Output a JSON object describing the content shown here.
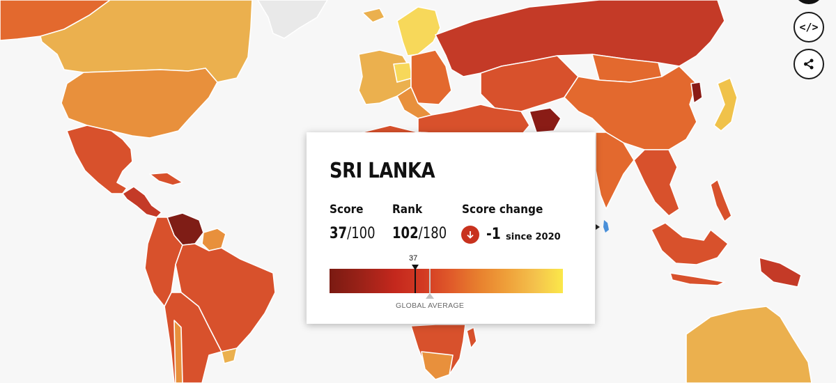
{
  "country": {
    "name": "SRI LANKA",
    "score_label": "Score",
    "score": "37",
    "score_max": "/100",
    "rank_label": "Rank",
    "rank": "102",
    "rank_max": "/180",
    "change_label": "Score change",
    "change_value": "-1",
    "change_since": "since 2020",
    "change_direction": "down"
  },
  "scale": {
    "marker_value": "37",
    "global_average_label": "GLOBAL AVERAGE",
    "min": 0,
    "max": 100,
    "global_average": 43
  },
  "controls": {
    "embed_label": "</>",
    "share_icon": "share-icon"
  },
  "colors": {
    "very_low": "#8a1c16",
    "low": "#c43a27",
    "mid_low": "#d8512c",
    "mid": "#e3692e",
    "mid_high": "#e8903c",
    "high": "#ebb04e",
    "very_high": "#f7d85a",
    "no_data": "#e9e9e9",
    "selected": "#4a90d9"
  }
}
